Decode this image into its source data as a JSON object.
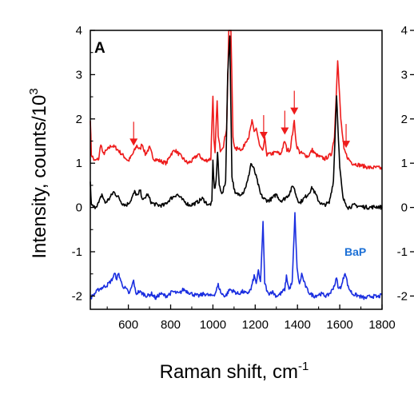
{
  "colors": {
    "red_series": "#ee1c1c",
    "black_series": "#000000",
    "blue_series": "#1a2ee0",
    "bap_label": "#1a6fd6",
    "arrow": "#ee1c1c"
  },
  "chart_data": {
    "type": "line",
    "panel_label": "A",
    "xlabel_main": "Raman shift, cm",
    "xlabel_sup": "-1",
    "ylabel_main": "Intensity, counts/10",
    "ylabel_sup": "3",
    "xlim": [
      420,
      1800
    ],
    "ylim": [
      -2.3,
      4
    ],
    "x_ticks": [
      600,
      800,
      1000,
      1200,
      1400,
      1600,
      1800
    ],
    "x_tick_labels": [
      "600",
      "800",
      "1000",
      "1200",
      "1400",
      "1600",
      "1800"
    ],
    "y_ticks": [
      -2,
      -1,
      0,
      1,
      2,
      3,
      4
    ],
    "y_tick_labels": [
      "-2",
      "-1",
      "0",
      "1",
      "2",
      "3",
      "4"
    ],
    "right_y_tick_labels": [
      "-2",
      "-1",
      "0",
      "1",
      "2",
      "3",
      "4"
    ],
    "annotation": "BaP",
    "arrows_x": [
      625,
      1240,
      1340,
      1385,
      1630
    ],
    "series": [
      {
        "color_key": "red_series",
        "baseline": 0.95,
        "points": [
          [
            420,
            2.0
          ],
          [
            425,
            1.2
          ],
          [
            440,
            1.05
          ],
          [
            460,
            1.1
          ],
          [
            470,
            1.45
          ],
          [
            480,
            1.2
          ],
          [
            500,
            1.3
          ],
          [
            520,
            1.4
          ],
          [
            540,
            1.35
          ],
          [
            560,
            1.25
          ],
          [
            580,
            1.15
          ],
          [
            600,
            1.05
          ],
          [
            620,
            1.2
          ],
          [
            640,
            1.4
          ],
          [
            655,
            1.3
          ],
          [
            665,
            1.45
          ],
          [
            680,
            1.2
          ],
          [
            700,
            1.35
          ],
          [
            720,
            1.1
          ],
          [
            750,
            1.05
          ],
          [
            780,
            1.0
          ],
          [
            800,
            1.2
          ],
          [
            820,
            1.3
          ],
          [
            840,
            1.2
          ],
          [
            860,
            1.1
          ],
          [
            880,
            1.0
          ],
          [
            900,
            1.05
          ],
          [
            930,
            1.2
          ],
          [
            960,
            1.05
          ],
          [
            990,
            1.1
          ],
          [
            1000,
            2.55
          ],
          [
            1005,
            1.5
          ],
          [
            1010,
            1.2
          ],
          [
            1020,
            2.45
          ],
          [
            1025,
            1.6
          ],
          [
            1035,
            1.3
          ],
          [
            1050,
            1.4
          ],
          [
            1065,
            1.8
          ],
          [
            1075,
            4.0
          ],
          [
            1085,
            4.0
          ],
          [
            1095,
            1.6
          ],
          [
            1105,
            1.3
          ],
          [
            1120,
            1.35
          ],
          [
            1140,
            1.3
          ],
          [
            1155,
            1.5
          ],
          [
            1170,
            1.6
          ],
          [
            1185,
            1.95
          ],
          [
            1195,
            1.7
          ],
          [
            1205,
            1.8
          ],
          [
            1220,
            1.4
          ],
          [
            1235,
            1.25
          ],
          [
            1245,
            1.55
          ],
          [
            1255,
            1.2
          ],
          [
            1270,
            1.2
          ],
          [
            1300,
            1.25
          ],
          [
            1320,
            1.2
          ],
          [
            1340,
            1.5
          ],
          [
            1350,
            1.3
          ],
          [
            1365,
            1.3
          ],
          [
            1385,
            1.95
          ],
          [
            1395,
            1.4
          ],
          [
            1410,
            1.25
          ],
          [
            1430,
            1.2
          ],
          [
            1450,
            1.15
          ],
          [
            1470,
            1.3
          ],
          [
            1485,
            1.2
          ],
          [
            1500,
            1.15
          ],
          [
            1530,
            1.1
          ],
          [
            1560,
            1.2
          ],
          [
            1575,
            1.6
          ],
          [
            1590,
            3.35
          ],
          [
            1605,
            2.0
          ],
          [
            1620,
            1.3
          ],
          [
            1640,
            1.1
          ],
          [
            1660,
            1.0
          ],
          [
            1700,
            0.95
          ],
          [
            1740,
            0.9
          ],
          [
            1780,
            0.9
          ],
          [
            1800,
            0.88
          ]
        ]
      },
      {
        "color_key": "black_series",
        "baseline": 0.0,
        "points": [
          [
            420,
            0.55
          ],
          [
            425,
            0.05
          ],
          [
            440,
            0.0
          ],
          [
            460,
            0.1
          ],
          [
            475,
            0.3
          ],
          [
            490,
            0.1
          ],
          [
            510,
            0.2
          ],
          [
            530,
            0.35
          ],
          [
            550,
            0.25
          ],
          [
            570,
            0.1
          ],
          [
            590,
            0.05
          ],
          [
            610,
            0.15
          ],
          [
            630,
            0.35
          ],
          [
            645,
            0.25
          ],
          [
            655,
            0.4
          ],
          [
            670,
            0.15
          ],
          [
            690,
            0.3
          ],
          [
            710,
            0.1
          ],
          [
            740,
            0.05
          ],
          [
            770,
            0.05
          ],
          [
            800,
            0.2
          ],
          [
            830,
            0.3
          ],
          [
            860,
            0.15
          ],
          [
            890,
            0.05
          ],
          [
            920,
            0.1
          ],
          [
            950,
            0.2
          ],
          [
            980,
            0.05
          ],
          [
            995,
            0.1
          ],
          [
            1000,
            1.05
          ],
          [
            1007,
            0.4
          ],
          [
            1015,
            0.6
          ],
          [
            1022,
            1.25
          ],
          [
            1030,
            0.5
          ],
          [
            1045,
            0.3
          ],
          [
            1060,
            0.6
          ],
          [
            1070,
            3.0
          ],
          [
            1080,
            3.9
          ],
          [
            1090,
            0.7
          ],
          [
            1105,
            0.3
          ],
          [
            1125,
            0.3
          ],
          [
            1145,
            0.35
          ],
          [
            1165,
            0.6
          ],
          [
            1180,
            1.0
          ],
          [
            1195,
            0.85
          ],
          [
            1210,
            0.6
          ],
          [
            1225,
            0.3
          ],
          [
            1240,
            0.2
          ],
          [
            1260,
            0.15
          ],
          [
            1280,
            0.2
          ],
          [
            1300,
            0.3
          ],
          [
            1320,
            0.15
          ],
          [
            1340,
            0.2
          ],
          [
            1360,
            0.3
          ],
          [
            1380,
            0.5
          ],
          [
            1395,
            0.25
          ],
          [
            1410,
            0.1
          ],
          [
            1430,
            0.2
          ],
          [
            1450,
            0.3
          ],
          [
            1470,
            0.45
          ],
          [
            1485,
            0.3
          ],
          [
            1500,
            0.15
          ],
          [
            1520,
            0.05
          ],
          [
            1550,
            0.1
          ],
          [
            1570,
            0.6
          ],
          [
            1585,
            2.55
          ],
          [
            1600,
            0.9
          ],
          [
            1615,
            0.2
          ],
          [
            1640,
            0.0
          ],
          [
            1670,
            0.05
          ],
          [
            1700,
            0.02
          ],
          [
            1740,
            0.0
          ],
          [
            1780,
            0.02
          ],
          [
            1800,
            0.0
          ]
        ]
      },
      {
        "color_key": "blue_series",
        "baseline": -2.0,
        "points": [
          [
            420,
            -2.05
          ],
          [
            440,
            -1.95
          ],
          [
            460,
            -1.85
          ],
          [
            480,
            -1.8
          ],
          [
            500,
            -1.75
          ],
          [
            520,
            -1.65
          ],
          [
            535,
            -1.5
          ],
          [
            545,
            -1.6
          ],
          [
            555,
            -1.5
          ],
          [
            570,
            -1.75
          ],
          [
            590,
            -1.85
          ],
          [
            605,
            -1.95
          ],
          [
            615,
            -1.8
          ],
          [
            625,
            -1.65
          ],
          [
            635,
            -1.95
          ],
          [
            650,
            -1.9
          ],
          [
            670,
            -1.95
          ],
          [
            690,
            -2.0
          ],
          [
            710,
            -1.95
          ],
          [
            730,
            -2.05
          ],
          [
            750,
            -1.95
          ],
          [
            780,
            -2.0
          ],
          [
            810,
            -1.9
          ],
          [
            840,
            -1.95
          ],
          [
            860,
            -1.85
          ],
          [
            880,
            -1.9
          ],
          [
            900,
            -1.95
          ],
          [
            930,
            -2.0
          ],
          [
            960,
            -1.95
          ],
          [
            990,
            -2.0
          ],
          [
            1010,
            -1.95
          ],
          [
            1025,
            -1.75
          ],
          [
            1040,
            -1.95
          ],
          [
            1060,
            -2.0
          ],
          [
            1080,
            -1.85
          ],
          [
            1100,
            -1.9
          ],
          [
            1120,
            -1.95
          ],
          [
            1140,
            -1.9
          ],
          [
            1160,
            -1.95
          ],
          [
            1180,
            -1.85
          ],
          [
            1195,
            -1.55
          ],
          [
            1205,
            -1.7
          ],
          [
            1215,
            -1.45
          ],
          [
            1225,
            -1.7
          ],
          [
            1237,
            -0.35
          ],
          [
            1245,
            -1.7
          ],
          [
            1260,
            -1.95
          ],
          [
            1280,
            -1.9
          ],
          [
            1300,
            -2.0
          ],
          [
            1320,
            -1.95
          ],
          [
            1340,
            -1.85
          ],
          [
            1348,
            -1.55
          ],
          [
            1360,
            -1.85
          ],
          [
            1375,
            -1.7
          ],
          [
            1388,
            -0.15
          ],
          [
            1398,
            -1.4
          ],
          [
            1410,
            -1.75
          ],
          [
            1420,
            -1.5
          ],
          [
            1432,
            -1.7
          ],
          [
            1445,
            -1.85
          ],
          [
            1460,
            -1.95
          ],
          [
            1480,
            -2.0
          ],
          [
            1510,
            -1.95
          ],
          [
            1540,
            -2.0
          ],
          [
            1560,
            -1.9
          ],
          [
            1575,
            -1.75
          ],
          [
            1585,
            -1.6
          ],
          [
            1595,
            -1.85
          ],
          [
            1610,
            -1.75
          ],
          [
            1625,
            -1.45
          ],
          [
            1640,
            -1.8
          ],
          [
            1660,
            -1.95
          ],
          [
            1690,
            -2.0
          ],
          [
            1720,
            -2.05
          ],
          [
            1750,
            -2.0
          ],
          [
            1780,
            -2.02
          ],
          [
            1800,
            -1.98
          ]
        ]
      }
    ]
  }
}
